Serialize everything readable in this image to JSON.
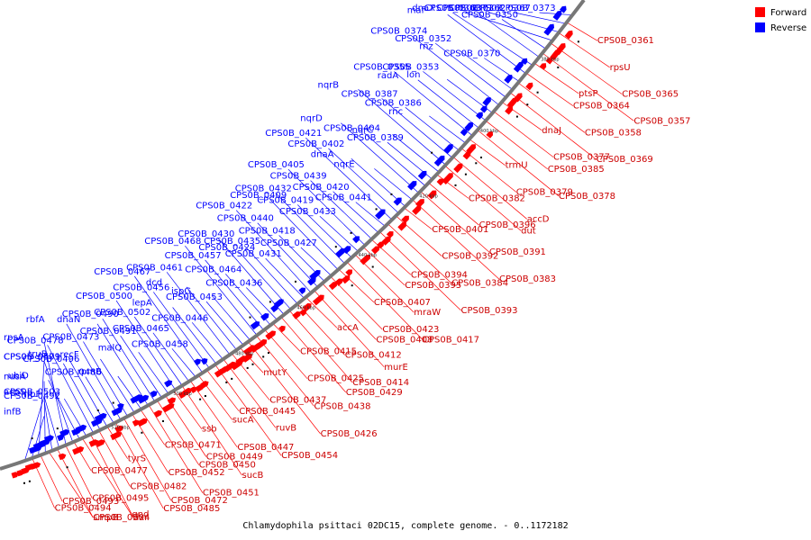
{
  "caption": "Chlamydophila psittaci 02DC15, complete genome. - 0..1172182",
  "legend": [
    {
      "label": "Forward",
      "color": "#ff0000"
    },
    {
      "label": "Reverse",
      "color": "#0000ff"
    }
  ],
  "kbp_labels": [
    "380 kbp",
    "400 kbp",
    "420 kbp",
    "440 kbp",
    "460 kbp",
    "480 kbp",
    "500 kbp",
    "520 kbp"
  ],
  "reverse_labels": [
    "CPS0B_0373",
    "CPS0B_0367",
    "CPS0B_0362",
    "CPS0B_0363",
    "CPS0B_0350",
    "CPS0B_0371",
    "dnaX",
    "maf",
    "CPS0B_0370",
    "rnz",
    "CPS0B_0352",
    "CPS0B_0374",
    "lon",
    "CPS0B_0353",
    "radA",
    "CPS0B_0355",
    "rnc",
    "CPS0B_0386",
    "CPS0B_0387",
    "nqrB",
    "nqrC",
    "CPS0B_0389",
    "CPS0B_0404",
    "nqrD",
    "nqrE",
    "dnaA",
    "CPS0B_0402",
    "CPS0B_0421",
    "CPS0B_0441",
    "CPS0B_0420",
    "CPS0B_0439",
    "CPS0B_0405",
    "CPS0B_0433",
    "CPS0B_0419",
    "CPS0B_0432",
    "CPS0B_0409",
    "CPS0B_0427",
    "CPS0B_0418",
    "CPS0B_0440",
    "CPS0B_0422",
    "CPS0B_0431",
    "CPS0B_0435",
    "CPS0B_0424",
    "CPS0B_0430",
    "CPS0B_0436",
    "CPS0B_0464",
    "CPS0B_0457",
    "CPS0B_0468",
    "ispG",
    "CPS0B_0453",
    "dcd",
    "CPS0B_0461",
    "CPS0B_0446",
    "lepA",
    "CPS0B_0456",
    "CPS0B_0467",
    "CPS0B_0458",
    "CPS0B_0465",
    "CPS0B_0502",
    "CPS0B_0500",
    "malQ",
    "CPS0B_0491",
    "CPS0B_0490",
    "dnaN",
    "rpmB",
    "recF",
    "CPS0B_0473",
    "rbfA",
    "CPS0B_0486",
    "truB",
    "CPS0B_0496",
    "CPS0B_0478",
    "ribF",
    "ubiD",
    "CPS0B_0479",
    "rpsA",
    "CPS0B_0503",
    "CPS0B_0492",
    "nusA",
    "CPS0B_0501",
    "infB",
    "acpS"
  ],
  "forward_labels": [
    "CPS0B_0361",
    "rpsU",
    "CPS0B_0365",
    "CPS0B_0357",
    "ptsP",
    "CPS0B_0364",
    "CPS0B_0358",
    "CPS0B_0369",
    "dnaJ",
    "CPS0B_0377",
    "CPS0B_0385",
    "CPS0B_0378",
    "trmU",
    "CPS0B_0379",
    "accD",
    "dut",
    "CPS0B_0382",
    "CPS0B_0396",
    "CPS0B_0391",
    "CPS0B_0383",
    "CPS0B_0401",
    "CPS0B_0392",
    "CPS0B_0384",
    "CPS0B_0393",
    "CPS0B_0394",
    "CPS0B_0395",
    "mraW",
    "CPS0B_0417",
    "CPS0B_0407",
    "CPS0B_0423",
    "CPS0B_0408",
    "murE",
    "accA",
    "CPS0B_0412",
    "CPS0B_0414",
    "CPS0B_0429",
    "CPS0B_0415",
    "CPS0B_0425",
    "CPS0B_0438",
    "CPS0B_0426",
    "mutY",
    "CPS0B_0437",
    "ruvB",
    "CPS0B_0454",
    "CPS0B_0445",
    "sucA",
    "CPS0B_0447",
    "sucB",
    "ssb",
    "CPS0B_0449",
    "CPS0B_0450",
    "CPS0B_0451",
    "CPS0B_0471",
    "CPS0B_0452",
    "CPS0B_0472",
    "CPS0B_0485",
    "tyrS",
    "CPS0B_0482",
    "gnd",
    "dxr",
    "CPS0B_0477",
    "CPS0B_0495",
    "smpB",
    "CPS0B_0504",
    "CPS0B_0493",
    "CPS0B_0494"
  ]
}
